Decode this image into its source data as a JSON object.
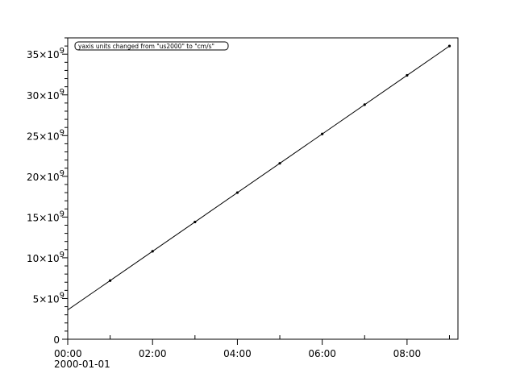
{
  "chart_data": {
    "type": "line",
    "title": "",
    "xlabel": "",
    "ylabel": "",
    "annotation": "yaxis units changed from \"us2000\" to \"cm/s\"",
    "x_tick_labels": [
      "00:00",
      "02:00",
      "04:00",
      "06:00",
      "08:00"
    ],
    "x_date_label": "2000-01-01",
    "y_tick_labels": [
      {
        "mantissa": "0",
        "exp": ""
      },
      {
        "mantissa": "5×10",
        "exp": "9"
      },
      {
        "mantissa": "10×10",
        "exp": "9"
      },
      {
        "mantissa": "15×10",
        "exp": "9"
      },
      {
        "mantissa": "20×10",
        "exp": "9"
      },
      {
        "mantissa": "25×10",
        "exp": "9"
      },
      {
        "mantissa": "30×10",
        "exp": "9"
      },
      {
        "mantissa": "35×10",
        "exp": "9"
      }
    ],
    "xlim_hours": [
      0,
      9.2
    ],
    "ylim": [
      0,
      37000000000.0
    ],
    "grid": false,
    "line": {
      "x_hours": [
        0,
        9
      ],
      "y": [
        3600000000.0,
        36000000000.0
      ]
    },
    "points": {
      "x_hours": [
        1,
        2,
        3,
        4,
        5,
        6,
        7,
        8,
        9
      ],
      "y": [
        7200000000.0,
        10800000000.0,
        14400000000.0,
        18000000000.0,
        21600000000.0,
        25200000000.0,
        28800000000.0,
        32400000000.0,
        36000000000.0
      ]
    },
    "colors": {
      "line": "#000000",
      "points": "#000000",
      "axes": "#000000"
    }
  }
}
